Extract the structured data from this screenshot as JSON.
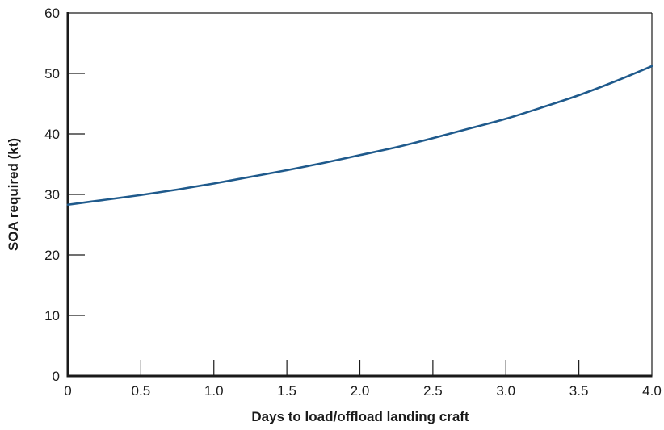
{
  "chart_data": {
    "type": "line",
    "title": "",
    "xlabel": "Days to load/offload landing craft",
    "ylabel": "SOA required (kt)",
    "xlim": [
      0,
      4.0
    ],
    "ylim": [
      0,
      60
    ],
    "x_ticks": [
      "0",
      "0.5",
      "1.0",
      "1.5",
      "2.0",
      "2.5",
      "3.0",
      "3.5",
      "4.0"
    ],
    "x_tick_values": [
      0,
      0.5,
      1.0,
      1.5,
      2.0,
      2.5,
      3.0,
      3.5,
      4.0
    ],
    "y_ticks": [
      "0",
      "10",
      "20",
      "30",
      "40",
      "50",
      "60"
    ],
    "y_tick_values": [
      0,
      10,
      20,
      30,
      40,
      50,
      60
    ],
    "grid": false,
    "series": [
      {
        "color": "#1f5a8c",
        "x": [
          0,
          0.25,
          0.5,
          0.75,
          1.0,
          1.25,
          1.5,
          1.75,
          2.0,
          2.25,
          2.5,
          2.75,
          3.0,
          3.25,
          3.5,
          3.75,
          4.0
        ],
        "y": [
          28.3,
          29.1,
          29.9,
          30.8,
          31.8,
          32.9,
          34.0,
          35.2,
          36.5,
          37.8,
          39.3,
          40.9,
          42.5,
          44.4,
          46.4,
          48.7,
          51.2
        ]
      }
    ]
  },
  "colors": {
    "axis": "#1a1a1a",
    "line": "#1f5a8c",
    "background": "#ffffff"
  }
}
